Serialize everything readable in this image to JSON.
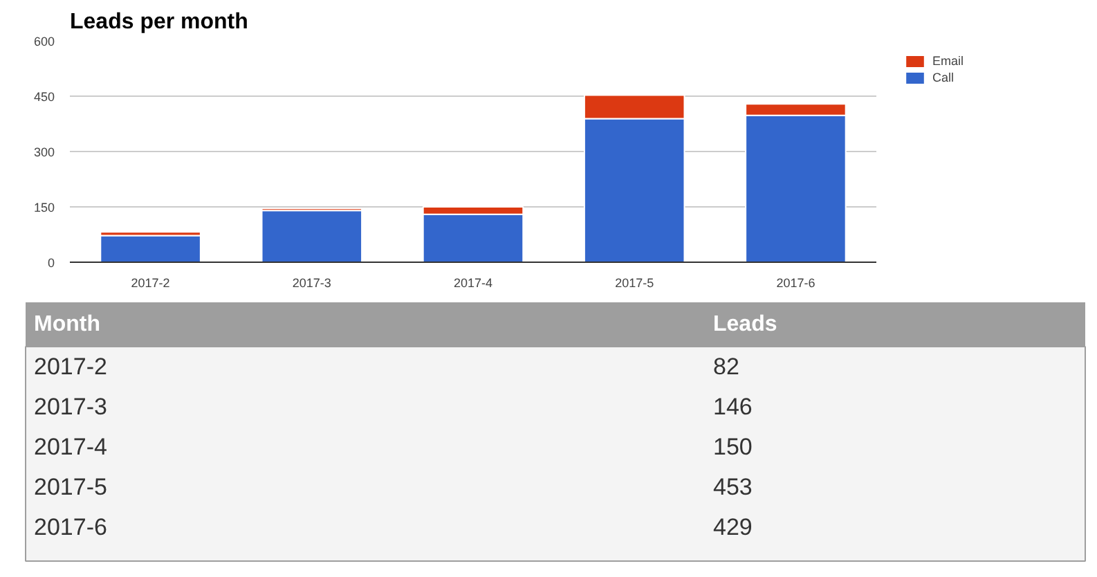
{
  "chart_data": [
    {
      "type": "bar",
      "title": "Leads per month",
      "stacked": true,
      "categories": [
        "2017-2",
        "2017-3",
        "2017-4",
        "2017-5",
        "2017-6"
      ],
      "series": [
        {
          "name": "Call",
          "color": "#3366cc",
          "values": [
            72,
            140,
            130,
            389,
            398
          ]
        },
        {
          "name": "Email",
          "color": "#dc3912",
          "values": [
            10,
            6,
            20,
            64,
            31
          ]
        }
      ],
      "ylim": [
        0,
        600
      ],
      "yticks": [
        0,
        150,
        300,
        450,
        600
      ],
      "grid": "y",
      "legend": "top right"
    },
    {
      "type": "other",
      "xlabel": "Month",
      "ylabel": "Leads",
      "data_labels": true,
      "categories": [
        "2017-2",
        "2017-3",
        "2017-4",
        "2017-5",
        "2017-6"
      ],
      "values": [
        82,
        146,
        150,
        453,
        429
      ]
    }
  ]
}
